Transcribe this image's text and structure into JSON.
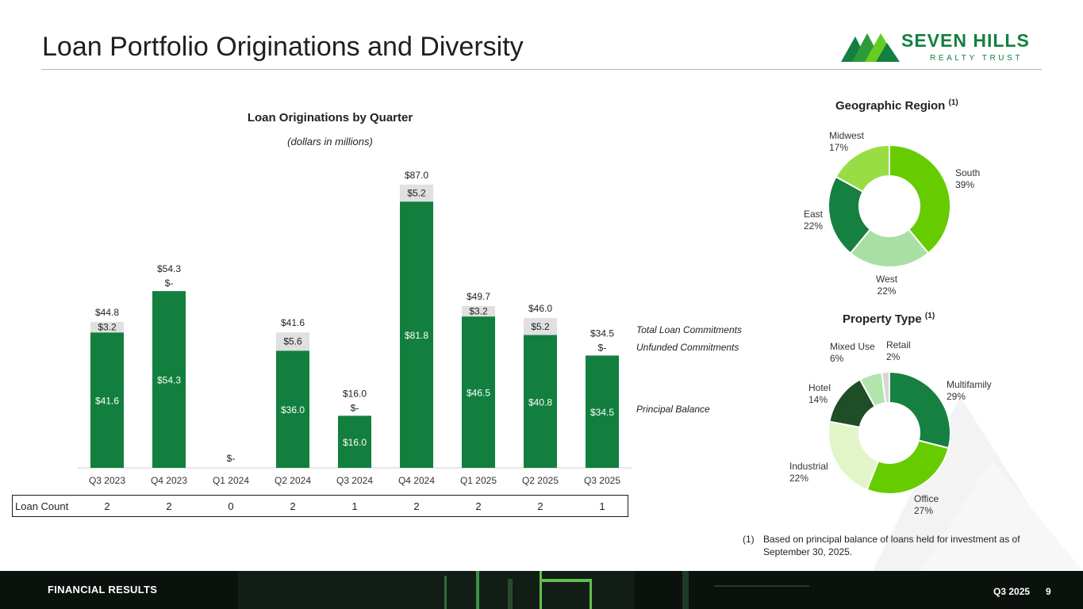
{
  "page": {
    "title": "Loan Portfolio Originations and Diversity",
    "logo": {
      "name": "SEVEN HILLS",
      "sub": "REALTY TRUST"
    },
    "footer": {
      "section": "FINANCIAL RESULTS",
      "period": "Q3 2025",
      "page_number": "9"
    }
  },
  "colors": {
    "principal": "#127f3e",
    "unfunded": "#e0e0e0",
    "accent": "#13803f"
  },
  "chart_data": [
    {
      "type": "bar",
      "stacked": true,
      "title": "Loan Originations by Quarter",
      "subtitle": "(dollars in millions)",
      "categories": [
        "Q3 2023",
        "Q4 2023",
        "Q1 2024",
        "Q2 2024",
        "Q3 2024",
        "Q4 2024",
        "Q1 2025",
        "Q2 2025",
        "Q3 2025"
      ],
      "series": [
        {
          "name": "Principal Balance",
          "values": [
            41.6,
            54.3,
            0,
            36.0,
            16.0,
            81.8,
            46.5,
            40.8,
            34.5
          ],
          "labels": [
            "$41.6",
            "$54.3",
            "",
            "$36.0",
            "$16.0",
            "$81.8",
            "$46.5",
            "$40.8",
            "$34.5"
          ]
        },
        {
          "name": "Unfunded Commitments",
          "values": [
            3.2,
            0,
            0,
            5.6,
            0,
            5.2,
            3.2,
            5.2,
            0
          ],
          "labels": [
            "$3.2",
            "$-",
            "",
            "$5.6",
            "$-",
            "$5.2",
            "$3.2",
            "$5.2",
            "$-"
          ]
        }
      ],
      "totals": [
        44.8,
        54.3,
        0,
        41.6,
        16.0,
        87.0,
        49.7,
        46.0,
        34.5
      ],
      "total_labels": [
        "$44.8",
        "$54.3",
        "$-",
        "$41.6",
        "$16.0",
        "$87.0",
        "$49.7",
        "$46.0",
        "$34.5"
      ],
      "legend": [
        "Total Loan Commitments",
        "Unfunded Commitments",
        "Principal Balance"
      ],
      "ylim": [
        0,
        95
      ],
      "loan_count_label": "Loan Count",
      "loan_counts": [
        "2",
        "2",
        "0",
        "2",
        "1",
        "2",
        "2",
        "2",
        "1"
      ]
    },
    {
      "type": "pie",
      "donut": true,
      "title": "Geographic Region",
      "footnote_ref": "(1)",
      "slices": [
        {
          "name": "South",
          "value": 39,
          "label": "39%",
          "color": "#66cc00"
        },
        {
          "name": "West",
          "value": 22,
          "label": "22%",
          "color": "#a9dfa4"
        },
        {
          "name": "East",
          "value": 22,
          "label": "22%",
          "color": "#158040"
        },
        {
          "name": "Midwest",
          "value": 17,
          "label": "17%",
          "color": "#99dd44"
        }
      ]
    },
    {
      "type": "pie",
      "donut": true,
      "title": "Property Type",
      "footnote_ref": "(1)",
      "slices": [
        {
          "name": "Multifamily",
          "value": 29,
          "label": "29%",
          "color": "#158040"
        },
        {
          "name": "Office",
          "value": 27,
          "label": "27%",
          "color": "#66cc00"
        },
        {
          "name": "Industrial",
          "value": 22,
          "label": "22%",
          "color": "#e2f5c8"
        },
        {
          "name": "Hotel",
          "value": 14,
          "label": "14%",
          "color": "#1f4d25"
        },
        {
          "name": "Mixed Use",
          "value": 6,
          "label": "6%",
          "color": "#b2e5ae"
        },
        {
          "name": "Retail",
          "value": 2,
          "label": "2%",
          "color": "#d6d6d6"
        }
      ]
    }
  ],
  "footnote": {
    "number": "(1)",
    "text": "Based on principal balance of loans held for investment as of September 30, 2025."
  }
}
